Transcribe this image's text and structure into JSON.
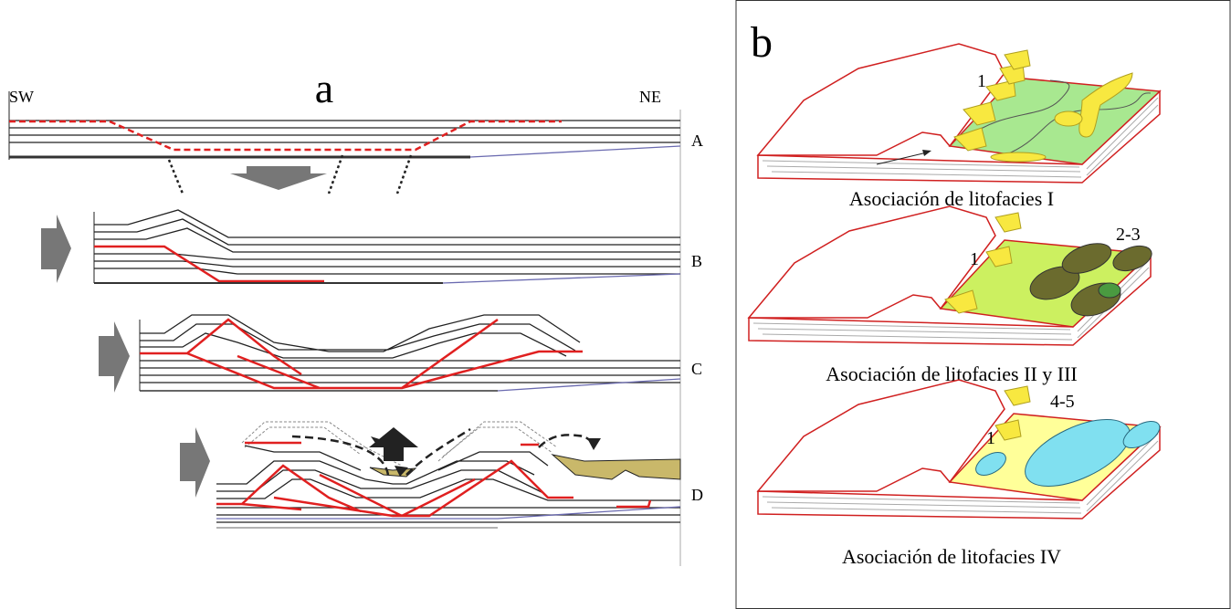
{
  "panel_a": {
    "label": "a",
    "left": "SW",
    "right": "NE",
    "stages": [
      "A",
      "B",
      "C",
      "D"
    ]
  },
  "panel_b": {
    "label": "b",
    "blocks": [
      {
        "caption": "Asociación de litofacies I",
        "labels": [
          "1"
        ]
      },
      {
        "caption": "Asociación de litofacies II y III",
        "labels": [
          "1",
          "2-3"
        ]
      },
      {
        "caption": "Asociación de litofacies IV",
        "labels": [
          "1",
          "4-5"
        ]
      }
    ]
  }
}
